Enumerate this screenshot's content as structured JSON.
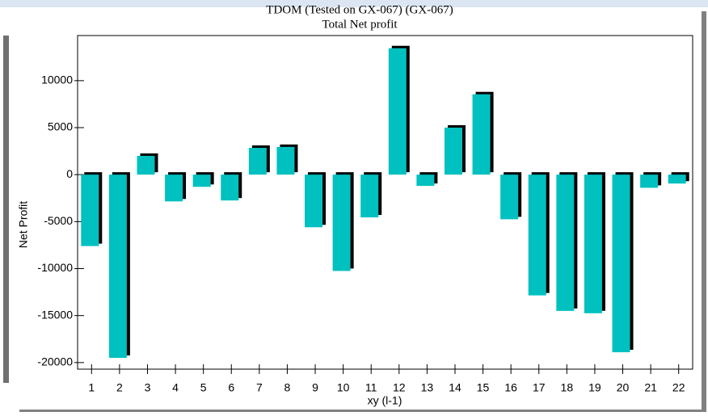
{
  "chart_data": {
    "type": "bar",
    "title": "TDOM (Tested on GX-067) (GX-067)",
    "subtitle": "Total Net profit",
    "x_label": "xy (l-1)",
    "y_label": "Net Profit",
    "categories": [
      "1",
      "2",
      "3",
      "4",
      "5",
      "6",
      "7",
      "8",
      "9",
      "10",
      "11",
      "12",
      "13",
      "14",
      "15",
      "16",
      "17",
      "18",
      "19",
      "20",
      "21",
      "22"
    ],
    "values": [
      -7600,
      -19500,
      2000,
      -2850,
      -1300,
      -2750,
      2850,
      2950,
      -5600,
      -10250,
      -4550,
      13450,
      -1200,
      5000,
      8550,
      -4750,
      -12850,
      -14500,
      -14750,
      -18900,
      -1400,
      -950
    ],
    "color": "#00c0c0",
    "ylim": [
      -20700,
      14800
    ],
    "yticks": [
      -20000,
      -15000,
      -10000,
      -5000,
      0,
      5000,
      10000
    ]
  }
}
